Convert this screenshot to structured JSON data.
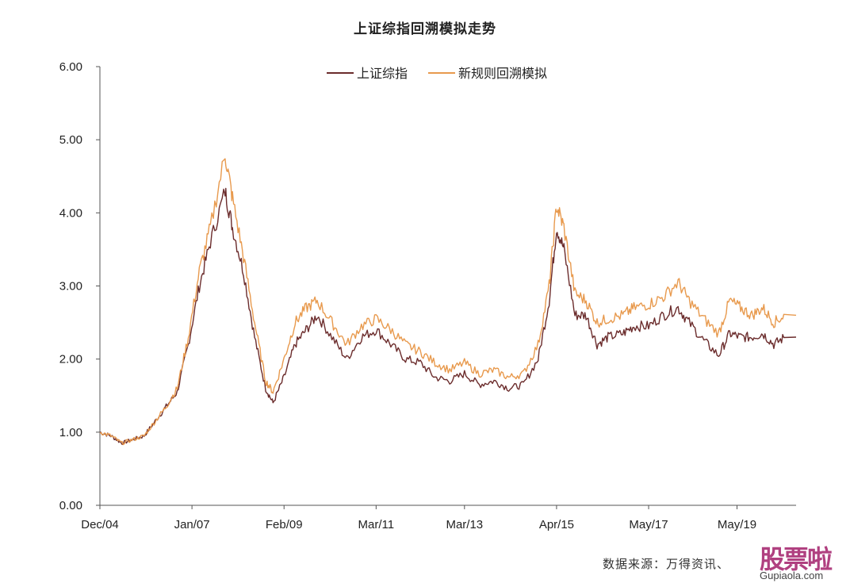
{
  "chart_data": {
    "type": "line",
    "title": "上证综指回溯模拟走势",
    "xlabel": "",
    "ylabel": "",
    "ylim": [
      0,
      6
    ],
    "yticks": [
      "0.00",
      "1.00",
      "2.00",
      "3.00",
      "4.00",
      "5.00",
      "6.00"
    ],
    "xticks": [
      {
        "label": "Dec/04",
        "date": "2004-12"
      },
      {
        "label": "Jan/07",
        "date": "2007-01"
      },
      {
        "label": "Feb/09",
        "date": "2009-02"
      },
      {
        "label": "Mar/11",
        "date": "2011-03"
      },
      {
        "label": "Mar/13",
        "date": "2013-03"
      },
      {
        "label": "Apr/15",
        "date": "2015-04"
      },
      {
        "label": "May/17",
        "date": "2017-05"
      },
      {
        "label": "May/19",
        "date": "2019-05"
      }
    ],
    "grid": false,
    "legend_position": "top-center",
    "x": [
      "2004-12",
      "2005-03",
      "2005-06",
      "2005-09",
      "2005-12",
      "2006-03",
      "2006-06",
      "2006-09",
      "2006-12",
      "2007-03",
      "2007-06",
      "2007-10",
      "2007-12",
      "2008-03",
      "2008-06",
      "2008-09",
      "2008-11",
      "2009-02",
      "2009-05",
      "2009-08",
      "2009-11",
      "2010-03",
      "2010-07",
      "2010-11",
      "2011-03",
      "2011-07",
      "2011-11",
      "2012-03",
      "2012-07",
      "2012-11",
      "2013-03",
      "2013-07",
      "2013-11",
      "2014-03",
      "2014-07",
      "2014-11",
      "2015-02",
      "2015-04",
      "2015-06",
      "2015-09",
      "2015-12",
      "2016-03",
      "2016-06",
      "2016-10",
      "2017-01",
      "2017-05",
      "2017-09",
      "2018-01",
      "2018-04",
      "2018-08",
      "2018-12",
      "2019-03",
      "2019-06",
      "2019-09",
      "2019-12",
      "2020-03",
      "2020-06"
    ],
    "series": [
      {
        "name": "上证综指",
        "color": "#6b2c2c",
        "values": [
          1.0,
          0.95,
          0.85,
          0.9,
          0.95,
          1.15,
          1.35,
          1.55,
          2.2,
          3.0,
          3.6,
          4.3,
          3.8,
          3.2,
          2.3,
          1.6,
          1.4,
          1.75,
          2.2,
          2.4,
          2.6,
          2.3,
          2.0,
          2.3,
          2.4,
          2.2,
          2.0,
          1.95,
          1.75,
          1.7,
          1.8,
          1.65,
          1.7,
          1.6,
          1.65,
          2.0,
          2.8,
          3.8,
          3.5,
          2.6,
          2.6,
          2.2,
          2.3,
          2.35,
          2.45,
          2.45,
          2.6,
          2.7,
          2.5,
          2.25,
          2.05,
          2.35,
          2.3,
          2.3,
          2.35,
          2.2,
          2.3
        ]
      },
      {
        "name": "新规则回溯模拟",
        "color": "#e89a4e",
        "values": [
          1.0,
          0.95,
          0.85,
          0.9,
          0.95,
          1.15,
          1.35,
          1.6,
          2.3,
          3.2,
          3.8,
          4.8,
          4.2,
          3.4,
          2.5,
          1.7,
          1.55,
          2.0,
          2.5,
          2.7,
          2.8,
          2.5,
          2.2,
          2.45,
          2.55,
          2.4,
          2.2,
          2.1,
          1.95,
          1.85,
          1.95,
          1.8,
          1.85,
          1.75,
          1.8,
          2.2,
          3.0,
          4.1,
          3.8,
          2.9,
          2.8,
          2.5,
          2.55,
          2.6,
          2.7,
          2.75,
          2.85,
          3.05,
          2.8,
          2.55,
          2.35,
          2.8,
          2.7,
          2.6,
          2.7,
          2.5,
          2.6
        ]
      }
    ]
  },
  "source_note": "数据来源：万得资讯、",
  "watermark": {
    "brand": "股票啦",
    "url": "Gupiaola.com"
  }
}
